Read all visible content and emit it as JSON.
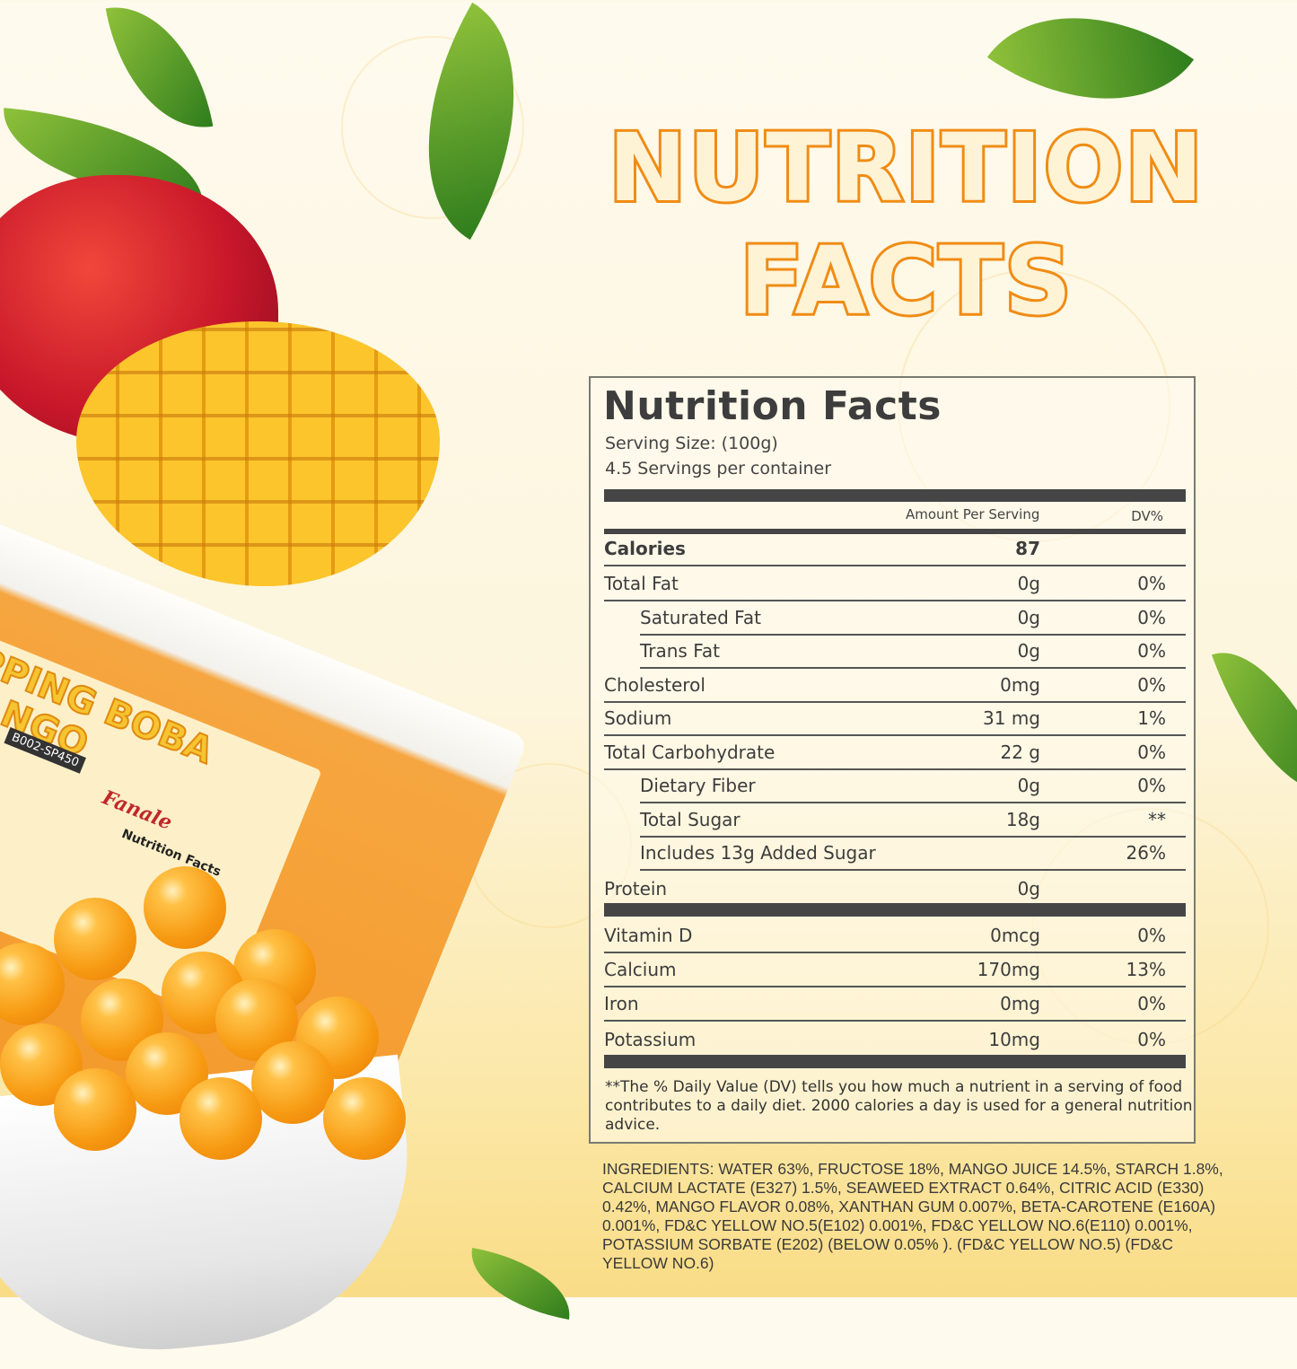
{
  "headline": {
    "line1": "NUTRITION",
    "line2": "FACTS",
    "color": "#f08c14"
  },
  "label": {
    "title": "Nutrition Facts",
    "serving_size": "Serving Size:  (100g)",
    "servings_per_container": "4.5 Servings per container",
    "col_amount": "Amount Per Serving",
    "col_dv": "DV%",
    "calories": {
      "name": "Calories",
      "amount": "87"
    },
    "group1": [
      {
        "name": "Total Fat",
        "amount": "0g",
        "dv": "0%",
        "indent": false
      },
      {
        "name": "Saturated Fat",
        "amount": "0g",
        "dv": "0%",
        "indent": true
      },
      {
        "name": "Trans Fat",
        "amount": "0g",
        "dv": "0%",
        "indent": true
      },
      {
        "name": "Cholesterol",
        "amount": "0mg",
        "dv": "0%",
        "indent": false
      },
      {
        "name": "Sodium",
        "amount": "31 mg",
        "dv": "1%",
        "indent": false
      },
      {
        "name": "Total Carbohydrate",
        "amount": "22 g",
        "dv": "0%",
        "indent": false
      },
      {
        "name": "Dietary Fiber",
        "amount": "0g",
        "dv": "0%",
        "indent": true
      },
      {
        "name": "Total Sugar",
        "amount": "18g",
        "dv": "**",
        "indent": true
      },
      {
        "name": "Includes 13g Added Sugar",
        "amount": "",
        "dv": "26%",
        "indent": true
      },
      {
        "name": "Protein",
        "amount": "0g",
        "dv": "",
        "indent": false
      }
    ],
    "group2": [
      {
        "name": "Vitamin D",
        "amount": "0mcg",
        "dv": "0%"
      },
      {
        "name": "Calcium",
        "amount": "170mg",
        "dv": "13%"
      },
      {
        "name": "Iron",
        "amount": "0mg",
        "dv": "0%"
      },
      {
        "name": "Potassium",
        "amount": "10mg",
        "dv": "0%"
      }
    ],
    "footnote": "**The % Daily Value (DV) tells you how much a nutrient in a serving of food contributes to a daily diet. 2000 calories a  day is used for a general nutrition advice."
  },
  "ingredients": "INGREDIENTS: WATER 63%, FRUCTOSE 18%, MANGO JUICE 14.5%, STARCH 1.8%, CALCIUM LACTATE (E327) 1.5%, SEAWEED EXTRACT 0.64%, CITRIC ACID (E330) 0.42%, MANGO FLAVOR 0.08%, XANTHAN GUM 0.007%, BETA-CAROTENE (E160A) 0.001%, FD&C YELLOW NO.5(E102) 0.001%, FD&C YELLOW NO.6(E110) 0.001%, POTASSIUM SORBATE (E202) (BELOW 0.05% ). (FD&C YELLOW NO.5) (FD&C YELLOW NO.6)",
  "product": {
    "name_line1": "POPPING BOBA",
    "name_line2": "MANGO",
    "brand": "Fanale",
    "sku": "B002-SP450",
    "package_label_title": "Nutrition Facts"
  }
}
